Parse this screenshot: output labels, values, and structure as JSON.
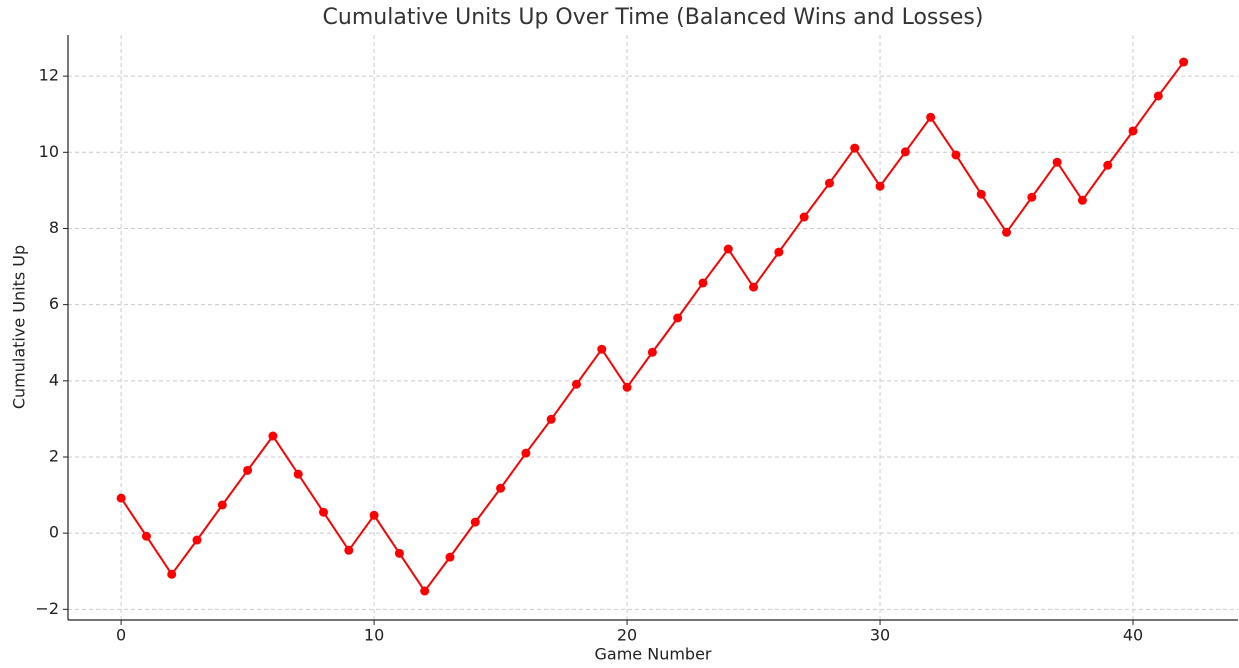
{
  "chart_data": {
    "type": "line",
    "title": "Cumulative Units Up Over Time (Balanced Wins and Losses)",
    "x_label": "Game Number",
    "y_label": "Cumulative Units Up",
    "x": [
      0,
      1,
      2,
      3,
      4,
      5,
      6,
      7,
      8,
      9,
      10,
      11,
      12,
      13,
      14,
      15,
      16,
      17,
      18,
      19,
      20,
      21,
      22,
      23,
      24,
      25,
      26,
      27,
      28,
      29,
      30,
      31,
      32,
      33,
      34,
      35,
      36,
      37,
      38,
      39,
      40,
      41,
      42
    ],
    "series": [
      {
        "name": "Cumulative Units Up",
        "color": "#ff0000",
        "values": [
          0.92,
          -0.08,
          -1.08,
          -0.18,
          0.74,
          1.65,
          2.55,
          1.55,
          0.55,
          -0.45,
          0.47,
          -0.53,
          -1.52,
          -0.63,
          0.29,
          1.18,
          2.1,
          2.99,
          3.91,
          4.83,
          3.83,
          4.75,
          5.65,
          6.57,
          7.46,
          6.46,
          7.38,
          8.3,
          9.19,
          10.11,
          9.11,
          10.01,
          10.92,
          9.93,
          8.9,
          7.9,
          8.82,
          9.74,
          8.74,
          9.66,
          10.56,
          11.48,
          12.37
        ]
      }
    ],
    "xlim": [
      -2.1,
      44.15
    ],
    "ylim": [
      -2.28,
      13.08
    ],
    "xticks": [
      0,
      10,
      20,
      30,
      40
    ],
    "yticks": [
      {
        "value": -2,
        "label": "−2"
      },
      0,
      2,
      4,
      6,
      8,
      10,
      12
    ],
    "grid": true
  }
}
